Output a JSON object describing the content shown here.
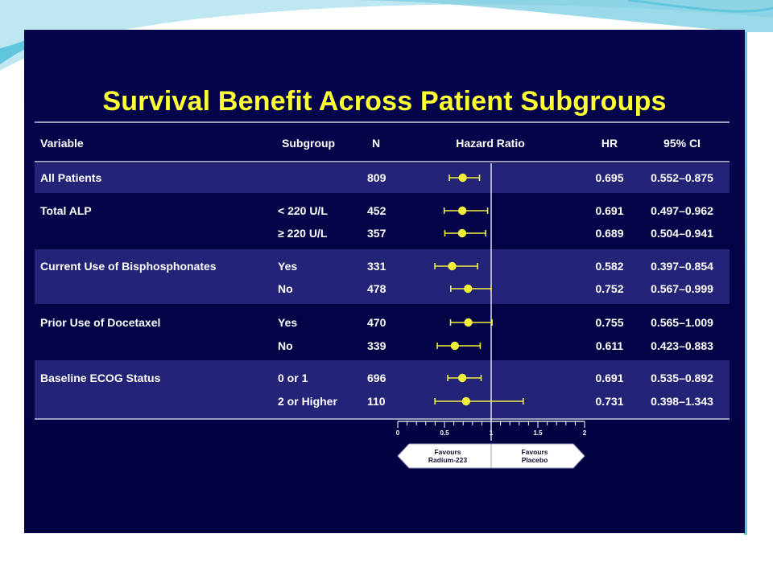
{
  "slide": {
    "title": "Survival Benefit Across Patient Subgroups"
  },
  "table": {
    "headers": {
      "variable": "Variable",
      "subgroup": "Subgroup",
      "n": "N",
      "hazard_ratio": "Hazard Ratio",
      "hr": "HR",
      "ci": "95% CI"
    }
  },
  "chart_data": {
    "type": "forest",
    "xlim": [
      0,
      2
    ],
    "ticks": [
      {
        "value": 0,
        "label": "0"
      },
      {
        "value": 0.5,
        "label": "0.5"
      },
      {
        "value": 1,
        "label": "1"
      },
      {
        "value": 1.5,
        "label": "1.5"
      },
      {
        "value": 2,
        "label": "2"
      }
    ],
    "reference_line": 1,
    "arrows": {
      "left": [
        "Favours",
        "Radium-223"
      ],
      "right": [
        "Favours",
        "Placebo"
      ]
    },
    "groups": [
      {
        "variable": "All Patients",
        "shaded": true,
        "rows": [
          {
            "subgroup": "",
            "n": "809",
            "hr": 0.695,
            "lo": 0.552,
            "hi": 0.875,
            "hr_text": "0.695",
            "ci_text": "0.552–0.875"
          }
        ]
      },
      {
        "variable": "Total ALP",
        "shaded": false,
        "rows": [
          {
            "subgroup": "< 220 U/L",
            "n": "452",
            "hr": 0.691,
            "lo": 0.497,
            "hi": 0.962,
            "hr_text": "0.691",
            "ci_text": "0.497–0.962"
          },
          {
            "subgroup": "≥ 220 U/L",
            "n": "357",
            "hr": 0.689,
            "lo": 0.504,
            "hi": 0.941,
            "hr_text": "0.689",
            "ci_text": "0.504–0.941"
          }
        ]
      },
      {
        "variable": "Current Use of Bisphosphonates",
        "shaded": true,
        "rows": [
          {
            "subgroup": "Yes",
            "n": "331",
            "hr": 0.582,
            "lo": 0.397,
            "hi": 0.854,
            "hr_text": "0.582",
            "ci_text": "0.397–0.854"
          },
          {
            "subgroup": "No",
            "n": "478",
            "hr": 0.752,
            "lo": 0.567,
            "hi": 0.999,
            "hr_text": "0.752",
            "ci_text": "0.567–0.999"
          }
        ]
      },
      {
        "variable": "Prior Use of Docetaxel",
        "shaded": false,
        "rows": [
          {
            "subgroup": "Yes",
            "n": "470",
            "hr": 0.755,
            "lo": 0.565,
            "hi": 1.009,
            "hr_text": "0.755",
            "ci_text": "0.565–1.009"
          },
          {
            "subgroup": "No",
            "n": "339",
            "hr": 0.611,
            "lo": 0.423,
            "hi": 0.883,
            "hr_text": "0.611",
            "ci_text": "0.423–0.883"
          }
        ]
      },
      {
        "variable": "Baseline ECOG Status",
        "shaded": true,
        "rows": [
          {
            "subgroup": "0 or 1",
            "n": "696",
            "hr": 0.691,
            "lo": 0.535,
            "hi": 0.892,
            "hr_text": "0.691",
            "ci_text": "0.535–0.892"
          },
          {
            "subgroup": "2 or Higher",
            "n": "110",
            "hr": 0.731,
            "lo": 0.398,
            "hi": 1.343,
            "hr_text": "0.731",
            "ci_text": "0.398–1.343"
          }
        ]
      }
    ]
  },
  "colors": {
    "background": "#03034a",
    "shaded_row": "#232378",
    "marker": "#f2ef3a",
    "title": "#ffff33",
    "text": "#ffffff",
    "decor_teal": "#5fc6dd"
  }
}
